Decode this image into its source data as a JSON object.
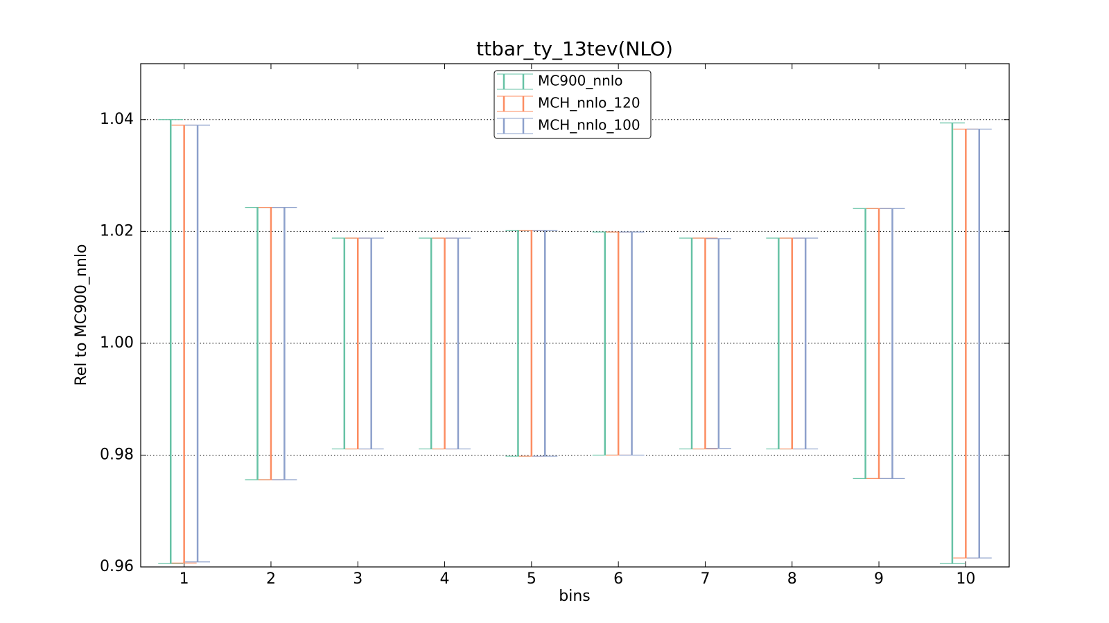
{
  "chart_data": {
    "type": "errorbar",
    "title": "ttbar_ty_13tev(NLO)",
    "x_label": "bins",
    "y_label": "Rel to MC900_nnlo",
    "x": [
      1,
      2,
      3,
      4,
      5,
      6,
      7,
      8,
      9,
      10
    ],
    "xlim": [
      0.5,
      10.5
    ],
    "xticks": [
      1,
      2,
      3,
      4,
      5,
      6,
      7,
      8,
      9,
      10
    ],
    "ylim": [
      0.96,
      1.05
    ],
    "yticks": [
      0.96,
      0.98,
      {
        "value": 1,
        "label": "1.00"
      },
      1.02,
      1.04
    ],
    "grid": true,
    "legend": "upper center",
    "series": [
      {
        "name": "MC900_nnlo",
        "color": "#66c2a5",
        "low": [
          0.9606,
          0.9756,
          0.9811,
          0.9811,
          0.9798,
          0.98,
          0.9811,
          0.9811,
          0.9758,
          0.9606
        ],
        "high": [
          1.04,
          1.0243,
          1.0188,
          1.0188,
          1.0202,
          1.0199,
          1.0188,
          1.0188,
          1.0241,
          1.0394
        ]
      },
      {
        "name": "MCH_nnlo_120",
        "color": "#fc8d62",
        "low": [
          0.9607,
          0.9756,
          0.9811,
          0.9811,
          0.9798,
          0.98,
          0.9811,
          0.9811,
          0.9758,
          0.9616
        ],
        "high": [
          1.039,
          1.0243,
          1.0188,
          1.0188,
          1.0202,
          1.0199,
          1.0188,
          1.0188,
          1.0241,
          1.0383
        ]
      },
      {
        "name": "MCH_nnlo_100",
        "color": "#8da0cb",
        "low": [
          0.9609,
          0.9756,
          0.9811,
          0.9811,
          0.9798,
          0.98,
          0.9812,
          0.9811,
          0.9758,
          0.9616
        ],
        "high": [
          1.039,
          1.0243,
          1.0188,
          1.0188,
          1.0202,
          1.0199,
          1.0187,
          1.0188,
          1.0241,
          1.0383
        ]
      }
    ]
  }
}
